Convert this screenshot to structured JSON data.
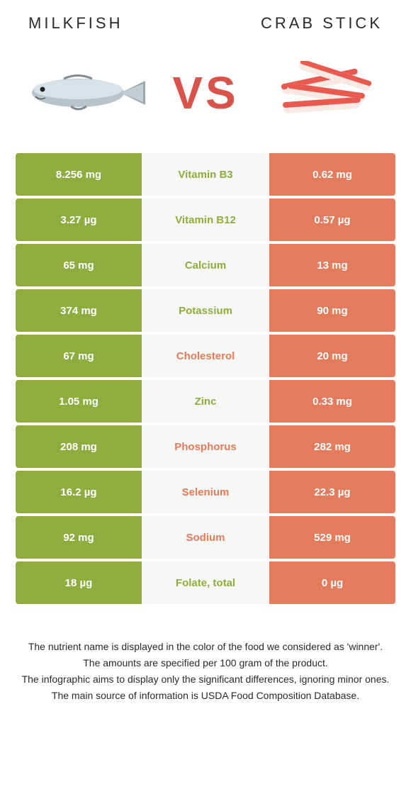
{
  "titles": {
    "left": "MILKFISH",
    "right": "CRAB STICK"
  },
  "vs_label": "VS",
  "colors": {
    "left_bg": "#8fad3f",
    "right_bg": "#e37b5c",
    "mid_bg": "#f7f7f5",
    "text_white": "#ffffff",
    "nutrient_left": "#8fad3f",
    "nutrient_right": "#e37b5c",
    "vs_color": "#d9534a"
  },
  "rows": [
    {
      "left": "8.256 mg",
      "nutrient": "Vitamin B3",
      "right": "0.62 mg",
      "winner": "left"
    },
    {
      "left": "3.27 µg",
      "nutrient": "Vitamin B12",
      "right": "0.57 µg",
      "winner": "left"
    },
    {
      "left": "65 mg",
      "nutrient": "Calcium",
      "right": "13 mg",
      "winner": "left"
    },
    {
      "left": "374 mg",
      "nutrient": "Potassium",
      "right": "90 mg",
      "winner": "left"
    },
    {
      "left": "67 mg",
      "nutrient": "Cholesterol",
      "right": "20 mg",
      "winner": "right"
    },
    {
      "left": "1.05 mg",
      "nutrient": "Zinc",
      "right": "0.33 mg",
      "winner": "left"
    },
    {
      "left": "208 mg",
      "nutrient": "Phosphorus",
      "right": "282 mg",
      "winner": "right"
    },
    {
      "left": "16.2 µg",
      "nutrient": "Selenium",
      "right": "22.3 µg",
      "winner": "right"
    },
    {
      "left": "92 mg",
      "nutrient": "Sodium",
      "right": "529 mg",
      "winner": "right"
    },
    {
      "left": "18 µg",
      "nutrient": "Folate, total",
      "right": "0 µg",
      "winner": "left"
    }
  ],
  "footer": {
    "line1": "The nutrient name is displayed in the color of the food we considered as 'winner'.",
    "line2": "The amounts are specified per 100 gram of the product.",
    "line3": "The infographic aims to display only the significant differences, ignoring minor ones.",
    "line4": "The main source of information is USDA Food Composition Database."
  },
  "icons": {
    "left_image": "milkfish-illustration",
    "right_image": "crab-stick-illustration"
  }
}
